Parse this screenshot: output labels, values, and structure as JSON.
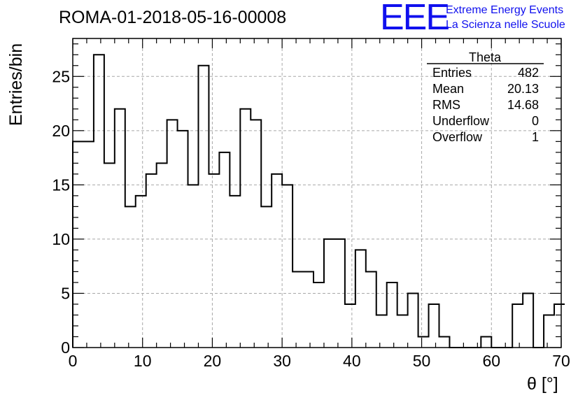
{
  "header": {
    "run_title": "ROMA-01-2018-05-16-00008",
    "logo_letters": "EEE",
    "logo_line1": "Extreme Energy Events",
    "logo_line2": "La Scienza nelle Scuole"
  },
  "stats": {
    "name": "Theta",
    "rows": [
      {
        "label": "Entries",
        "value": "482"
      },
      {
        "label": "Mean",
        "value": "20.13"
      },
      {
        "label": "RMS",
        "value": "14.68"
      },
      {
        "label": "Underflow",
        "value": "0"
      },
      {
        "label": "Overflow",
        "value": "1"
      }
    ]
  },
  "chart_data": {
    "type": "bar",
    "style": "step-histogram",
    "title": "ROMA-01-2018-05-16-00008",
    "xlabel": "θ [°]",
    "ylabel": "Entries/bin",
    "xlim": [
      0,
      70
    ],
    "ylim": [
      0,
      28.5
    ],
    "bin_width": 1.5,
    "x_ticks": [
      0,
      10,
      20,
      30,
      40,
      50,
      60,
      70
    ],
    "y_ticks": [
      0,
      5,
      10,
      15,
      20,
      25
    ],
    "grid": true,
    "bin_edges_start": 0,
    "values": [
      19,
      19,
      27,
      17,
      22,
      13,
      14,
      16,
      17,
      21,
      20,
      15,
      26,
      16,
      18,
      14,
      22,
      21,
      13,
      16,
      15,
      7,
      7,
      6,
      10,
      10,
      4,
      9,
      7,
      3,
      6,
      3,
      5,
      1,
      4,
      1,
      0,
      0,
      0,
      1,
      0,
      0,
      4,
      5,
      0,
      3,
      4
    ],
    "series_color": "#000000"
  }
}
